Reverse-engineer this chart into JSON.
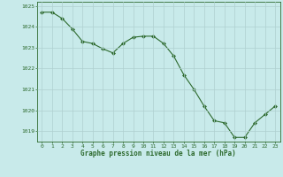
{
  "x": [
    0,
    1,
    2,
    3,
    4,
    5,
    6,
    7,
    8,
    9,
    10,
    11,
    12,
    13,
    14,
    15,
    16,
    17,
    18,
    19,
    20,
    21,
    22,
    23
  ],
  "y": [
    1024.7,
    1024.7,
    1024.4,
    1023.9,
    1023.3,
    1023.2,
    1022.95,
    1022.75,
    1023.2,
    1023.5,
    1023.55,
    1023.55,
    1023.2,
    1022.6,
    1021.7,
    1021.0,
    1020.2,
    1019.5,
    1019.4,
    1018.7,
    1018.7,
    1019.4,
    1019.8,
    1020.2
  ],
  "ylim": [
    1018.5,
    1025.2
  ],
  "yticks": [
    1019,
    1020,
    1021,
    1022,
    1023,
    1024,
    1025
  ],
  "xticks": [
    0,
    1,
    2,
    3,
    4,
    5,
    6,
    7,
    8,
    9,
    10,
    11,
    12,
    13,
    14,
    15,
    16,
    17,
    18,
    19,
    20,
    21,
    22,
    23
  ],
  "line_color": "#2d6a2d",
  "marker_color": "#2d6a2d",
  "bg_color": "#c8eaea",
  "grid_color": "#afd0d0",
  "xlabel": "Graphe pression niveau de la mer (hPa)",
  "xlabel_color": "#2d6a2d",
  "tick_color": "#2d6a2d",
  "border_color": "#2d6a2d"
}
